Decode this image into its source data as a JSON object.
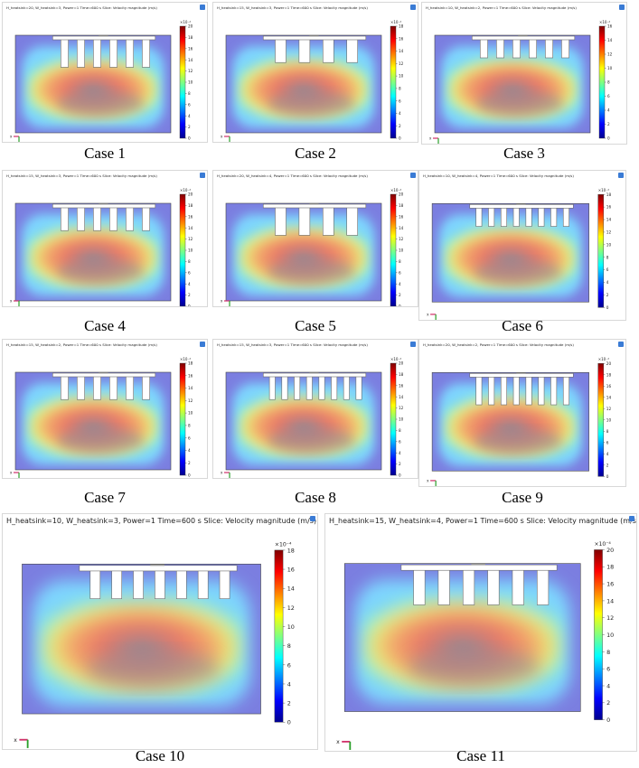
{
  "unit_exp": "×10⁻⁴",
  "axes": {
    "x": "x",
    "y": "y"
  },
  "colors": {
    "tray": "#7b7ee0",
    "fin": "#ffffff",
    "heatsink_outline": "#6b6b6b",
    "accent": "#1976d2"
  },
  "colormap": [
    "#00008f",
    "#0000ff",
    "#0080ff",
    "#00ffff",
    "#80ff80",
    "#ffff00",
    "#ff8000",
    "#ff0000",
    "#800000"
  ],
  "panels": [
    {
      "id": "case1",
      "title": "H_heatsink=20, W_heatsink=3, Power=1 Time=600 s   Slice: Velocity magnitude (m/s)",
      "caption": "Case 1",
      "fins": 6,
      "fin_depth": 0.9,
      "cb_max": 20,
      "ticks": [
        "20",
        "18",
        "16",
        "14",
        "12",
        "10",
        "8",
        "6",
        "4",
        "2",
        "0"
      ]
    },
    {
      "id": "case2",
      "title": "H_heatsink=15, W_heatsink=3, Power=1 Time=600 s   Slice: Velocity magnitude (m/s)",
      "caption": "Case 2",
      "fins": 4,
      "fin_depth": 0.7,
      "cb_max": 18,
      "ticks": [
        "18",
        "16",
        "14",
        "12",
        "10",
        "8",
        "6",
        "4",
        "2",
        "0"
      ]
    },
    {
      "id": "case3",
      "title": "H_heatsink=10, W_heatsink=2, Power=1 Time=600 s   Slice: Velocity magnitude (m/s)",
      "caption": "Case 3",
      "fins": 6,
      "fin_depth": 0.5,
      "cb_max": 16,
      "ticks": [
        "16",
        "14",
        "12",
        "10",
        "8",
        "6",
        "4",
        "2",
        "0"
      ]
    },
    {
      "id": "case4",
      "title": "H_heatsink=15, W_heatsink=3, Power=1 Time=600 s   Slice: Velocity magnitude (m/s)",
      "caption": "Case 4",
      "fins": 6,
      "fin_depth": 0.7,
      "cb_max": 20,
      "ticks": [
        "20",
        "18",
        "16",
        "14",
        "12",
        "10",
        "8",
        "6",
        "4",
        "2",
        "0"
      ]
    },
    {
      "id": "case5",
      "title": "H_heatsink=20, W_heatsink=4, Power=1 Time=600 s   Slice: Velocity magnitude (m/s)",
      "caption": "Case 5",
      "fins": 4,
      "fin_depth": 0.9,
      "cb_max": 20,
      "ticks": [
        "20",
        "18",
        "16",
        "14",
        "12",
        "10",
        "8",
        "6",
        "4",
        "2",
        "0"
      ]
    },
    {
      "id": "case6",
      "title": "H_heatsink=10, W_heatsink=4, Power=1 Time=600 s   Slice: Velocity magnitude (m/s)",
      "caption": "Case 6",
      "fins": 8,
      "fin_depth": 0.5,
      "cb_max": 18,
      "ticks": [
        "18",
        "16",
        "14",
        "12",
        "10",
        "8",
        "6",
        "4",
        "2",
        "0"
      ]
    },
    {
      "id": "case7",
      "title": "H_heatsink=15, W_heatsink=2, Power=1 Time=600 s   Slice: Velocity magnitude (m/s)",
      "caption": "Case 7",
      "fins": 6,
      "fin_depth": 0.7,
      "cb_max": 18,
      "ticks": [
        "18",
        "16",
        "14",
        "12",
        "10",
        "8",
        "6",
        "4",
        "2",
        "0"
      ]
    },
    {
      "id": "case8",
      "title": "H_heatsink=15, W_heatsink=3, Power=1 Time=600 s   Slice: Velocity magnitude (m/s)",
      "caption": "Case 8",
      "fins": 8,
      "fin_depth": 0.7,
      "cb_max": 20,
      "ticks": [
        "20",
        "18",
        "16",
        "14",
        "12",
        "10",
        "8",
        "6",
        "4",
        "2",
        "0"
      ]
    },
    {
      "id": "case9",
      "title": "H_heatsink=20, W_heatsink=2, Power=1 Time=600 s   Slice: Velocity magnitude (m/s)",
      "caption": "Case 9",
      "fins": 8,
      "fin_depth": 0.9,
      "cb_max": 20,
      "ticks": [
        "20",
        "18",
        "16",
        "14",
        "12",
        "10",
        "8",
        "6",
        "4",
        "2",
        "0"
      ]
    },
    {
      "id": "case10",
      "title": "H_heatsink=10, W_heatsink=3, Power=1 Time=600 s   Slice: Velocity magnitude (m/s)",
      "caption": "Case 10",
      "fins": 7,
      "fin_depth": 0.5,
      "cb_max": 18,
      "ticks": [
        "18",
        "16",
        "14",
        "12",
        "10",
        "8",
        "6",
        "4",
        "2",
        "0"
      ]
    },
    {
      "id": "case11",
      "title": "H_heatsink=15, W_heatsink=4, Power=1 Time=600 s   Slice: Velocity magnitude (m/s)",
      "caption": "Case 11",
      "fins": 6,
      "fin_depth": 0.7,
      "cb_max": 20,
      "ticks": [
        "20",
        "18",
        "16",
        "14",
        "12",
        "10",
        "8",
        "6",
        "4",
        "2",
        "0"
      ]
    }
  ]
}
